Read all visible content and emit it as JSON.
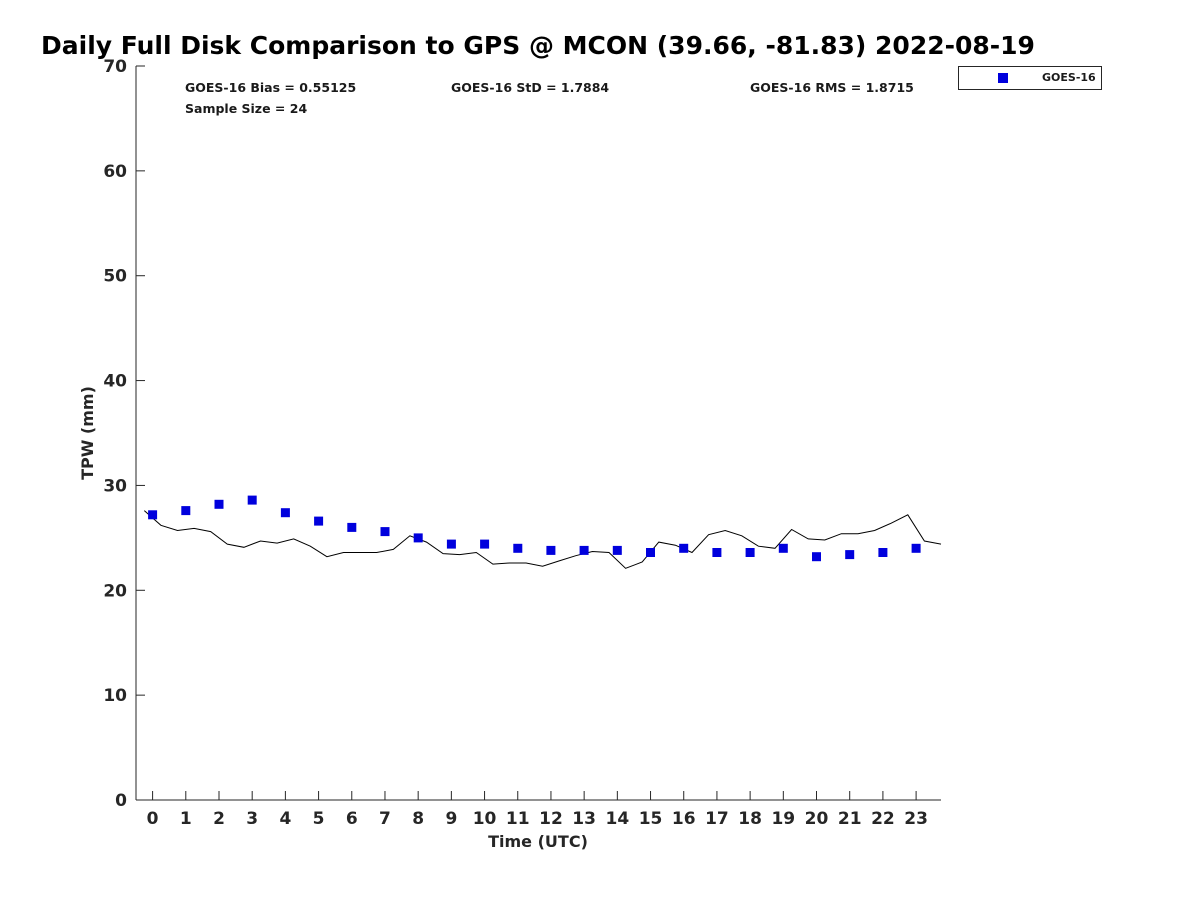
{
  "chart_data": {
    "type": "scatter",
    "title": "Daily Full Disk Comparison to GPS @ MCON (39.66, -81.83) 2022-08-19",
    "xlabel": "Time (UTC)",
    "ylabel": "TPW (mm)",
    "xlim": [
      -0.5,
      23.75
    ],
    "ylim": [
      0,
      70
    ],
    "xticks": [
      "0",
      "1",
      "2",
      "3",
      "4",
      "5",
      "6",
      "7",
      "8",
      "9",
      "10",
      "11",
      "12",
      "13",
      "14",
      "15",
      "16",
      "17",
      "18",
      "19",
      "20",
      "21",
      "22",
      "23"
    ],
    "yticks": [
      "0",
      "10",
      "20",
      "30",
      "40",
      "50",
      "60",
      "70"
    ],
    "grid": false,
    "legend_position": "top-right",
    "stats": {
      "bias": "GOES-16 Bias = 0.55125",
      "std": "GOES-16 StD = 1.7884",
      "rms": "GOES-16 RMS = 1.8715",
      "sample": "Sample Size = 24"
    },
    "series": [
      {
        "name": "GOES-16",
        "marker": "square",
        "color": "#0000dd",
        "x": [
          0,
          1,
          2,
          3,
          4,
          5,
          6,
          7,
          8,
          9,
          10,
          11,
          12,
          13,
          14,
          15,
          16,
          17,
          18,
          19,
          20,
          21,
          22,
          23
        ],
        "y": [
          27.2,
          27.6,
          28.2,
          28.6,
          27.4,
          26.6,
          26.0,
          25.6,
          25.0,
          24.4,
          24.4,
          24.0,
          23.8,
          23.8,
          23.8,
          23.6,
          24.0,
          23.6,
          23.6,
          24.0,
          23.2,
          23.4,
          23.6,
          24.0
        ]
      },
      {
        "marker": "line",
        "color": "#000000",
        "x": [
          -0.25,
          0.25,
          0.75,
          1.25,
          1.75,
          2.25,
          2.75,
          3.25,
          3.75,
          4.25,
          4.75,
          5.25,
          5.75,
          6.25,
          6.75,
          7.25,
          7.75,
          8.25,
          8.75,
          9.25,
          9.75,
          10.25,
          10.75,
          11.25,
          11.75,
          12.25,
          12.75,
          13.25,
          13.75,
          14.25,
          14.75,
          15.25,
          15.75,
          16.25,
          16.75,
          17.25,
          17.75,
          18.25,
          18.75,
          19.25,
          19.75,
          20.25,
          20.75,
          21.25,
          21.75,
          22.25,
          22.75,
          23.25,
          23.75
        ],
        "y": [
          27.6,
          26.2,
          25.7,
          25.9,
          25.6,
          24.4,
          24.1,
          24.7,
          24.5,
          24.9,
          24.2,
          23.2,
          23.6,
          23.6,
          23.6,
          23.9,
          25.2,
          24.6,
          23.5,
          23.4,
          23.6,
          22.5,
          22.6,
          22.6,
          22.3,
          22.8,
          23.3,
          23.7,
          23.6,
          22.1,
          22.7,
          24.6,
          24.3,
          23.6,
          25.3,
          25.7,
          25.2,
          24.2,
          24.0,
          25.8,
          24.9,
          24.8,
          25.4,
          25.4,
          25.7,
          26.4,
          27.2,
          24.7,
          24.4
        ]
      }
    ]
  }
}
